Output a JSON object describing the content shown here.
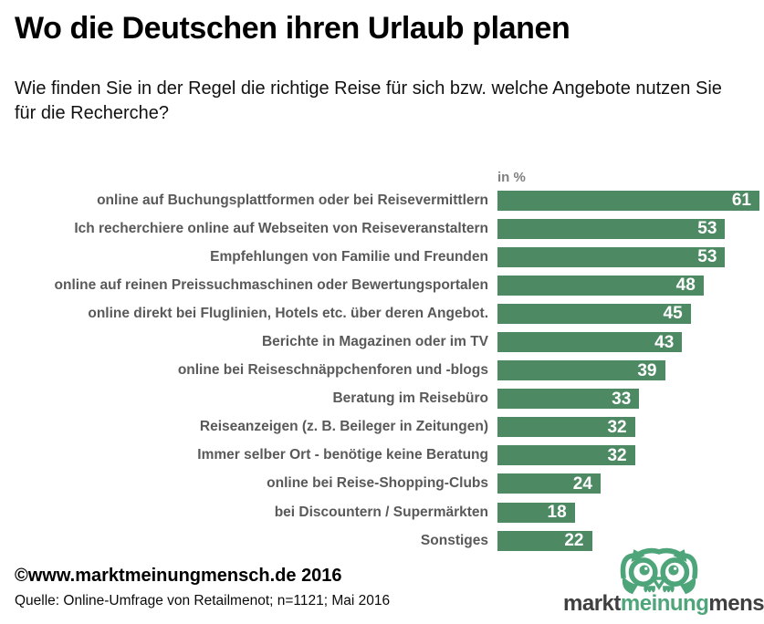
{
  "header": {
    "title": "Wo die Deutschen ihren Urlaub planen",
    "subtitle": "Wie finden Sie in der Regel die richtige Reise für sich bzw. welche Angebote nutzen Sie für die Recherche?"
  },
  "chart_data": {
    "type": "bar",
    "orientation": "horizontal",
    "unit_label": "in %",
    "categories": [
      "online auf Buchungsplattformen oder bei Reisevermittlern",
      "Ich recherchiere online auf Webseiten von Reiseveranstaltern",
      "Empfehlungen von Familie und Freunden",
      "online auf reinen Preissuchmaschinen oder Bewertungsportalen",
      "online direkt bei Fluglinien, Hotels etc. über deren Angebot.",
      "Berichte in Magazinen oder im TV",
      "online bei Reiseschnäppchenforen und -blogs",
      "Beratung im Reisebüro",
      "Reiseanzeigen (z. B. Beileger in Zeitungen)",
      "Immer selber Ort - benötige keine Beratung",
      "online bei Reise-Shopping-Clubs",
      "bei Discountern / Supermärkten",
      "Sonstiges"
    ],
    "values": [
      61,
      53,
      53,
      48,
      45,
      43,
      39,
      33,
      32,
      32,
      24,
      18,
      22
    ],
    "xlim": [
      0,
      61
    ],
    "grid": false,
    "legend": false,
    "value_labels": "inside-end",
    "bar_color": "#4d8a63",
    "value_label_color": "#ffffff",
    "category_label_color": "#595959"
  },
  "footer": {
    "copyright": "©www.marktmeinungmensch.de 2016",
    "source": "Quelle: Online-Umfrage von Retailmenot; n=1121; Mai 2016"
  },
  "logo": {
    "markt": "markt",
    "meinung": "meinung",
    "mensch": "mensch",
    "green": "#4fa57a",
    "dark": "#3f3f3f"
  }
}
